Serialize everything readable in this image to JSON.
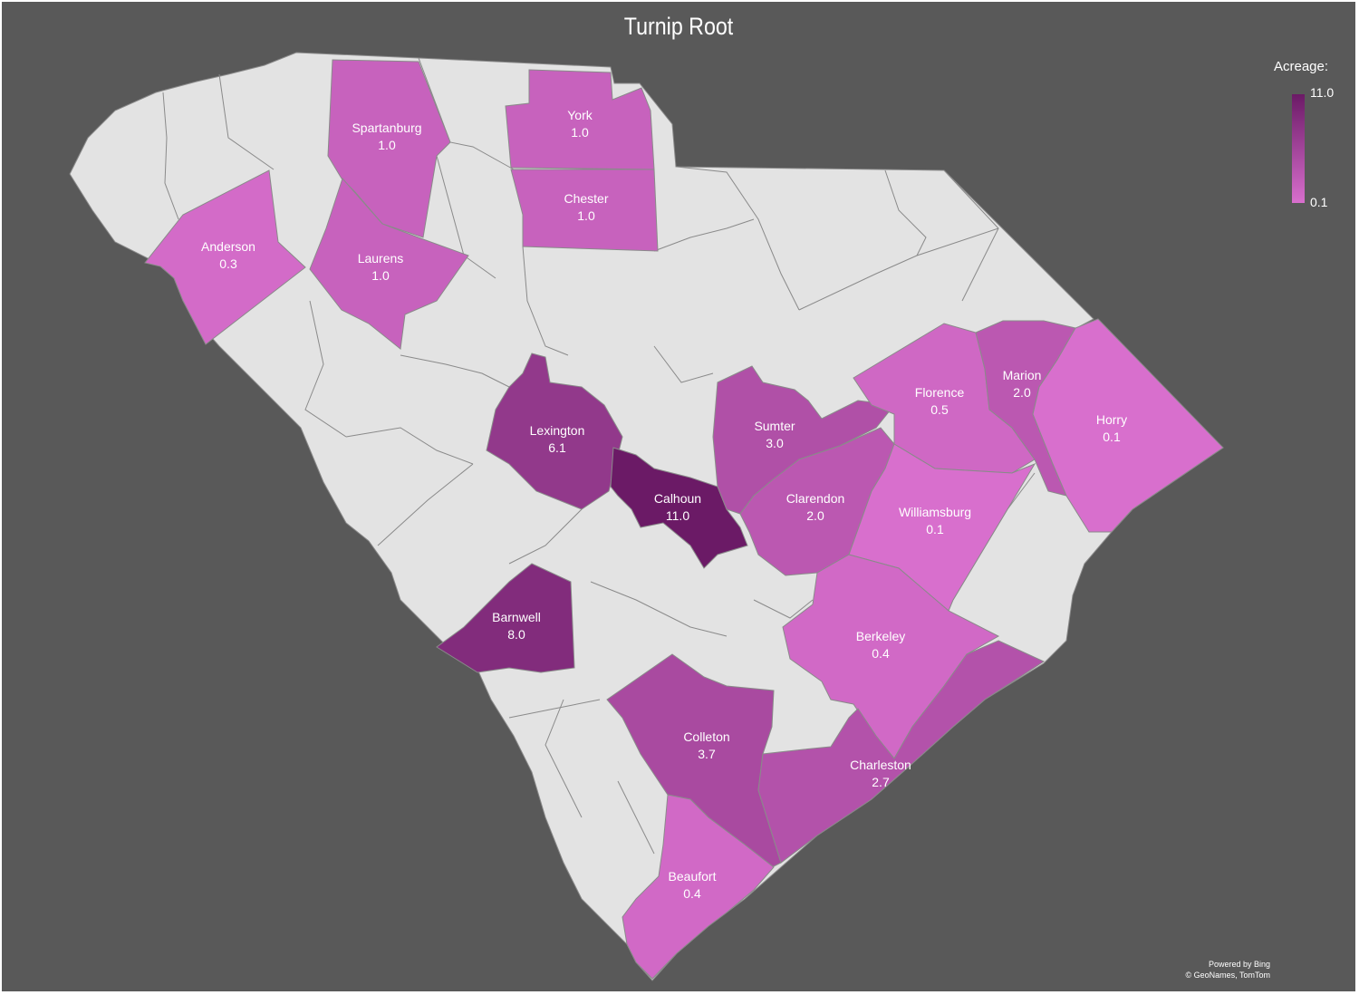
{
  "title": "Turnip Root",
  "legend": {
    "title": "Acreage:",
    "max_label": "11.0",
    "min_label": "0.1",
    "max_color": "#6b1a66",
    "min_color": "#d86fcd"
  },
  "attribution": {
    "line1": "Powered by Bing",
    "line2": "© GeoNames, TomTom"
  },
  "colors": {
    "background": "#595959",
    "state_fill": "#e3e3e3",
    "county_border": "#8a8a8a"
  },
  "counties": [
    {
      "name": "Spartanburg",
      "value": "1.0",
      "acreage": 1.0
    },
    {
      "name": "York",
      "value": "1.0",
      "acreage": 1.0
    },
    {
      "name": "Chester",
      "value": "1.0",
      "acreage": 1.0
    },
    {
      "name": "Anderson",
      "value": "0.3",
      "acreage": 0.3
    },
    {
      "name": "Laurens",
      "value": "1.0",
      "acreage": 1.0
    },
    {
      "name": "Lexington",
      "value": "6.1",
      "acreage": 6.1
    },
    {
      "name": "Calhoun",
      "value": "11.0",
      "acreage": 11.0
    },
    {
      "name": "Sumter",
      "value": "3.0",
      "acreage": 3.0
    },
    {
      "name": "Clarendon",
      "value": "2.0",
      "acreage": 2.0
    },
    {
      "name": "Florence",
      "value": "0.5",
      "acreage": 0.5
    },
    {
      "name": "Marion",
      "value": "2.0",
      "acreage": 2.0
    },
    {
      "name": "Horry",
      "value": "0.1",
      "acreage": 0.1
    },
    {
      "name": "Williamsburg",
      "value": "0.1",
      "acreage": 0.1
    },
    {
      "name": "Barnwell",
      "value": "8.0",
      "acreage": 8.0
    },
    {
      "name": "Berkeley",
      "value": "0.4",
      "acreage": 0.4
    },
    {
      "name": "Colleton",
      "value": "3.7",
      "acreage": 3.7
    },
    {
      "name": "Charleston",
      "value": "2.7",
      "acreage": 2.7
    },
    {
      "name": "Beaufort",
      "value": "0.4",
      "acreage": 0.4
    }
  ]
}
